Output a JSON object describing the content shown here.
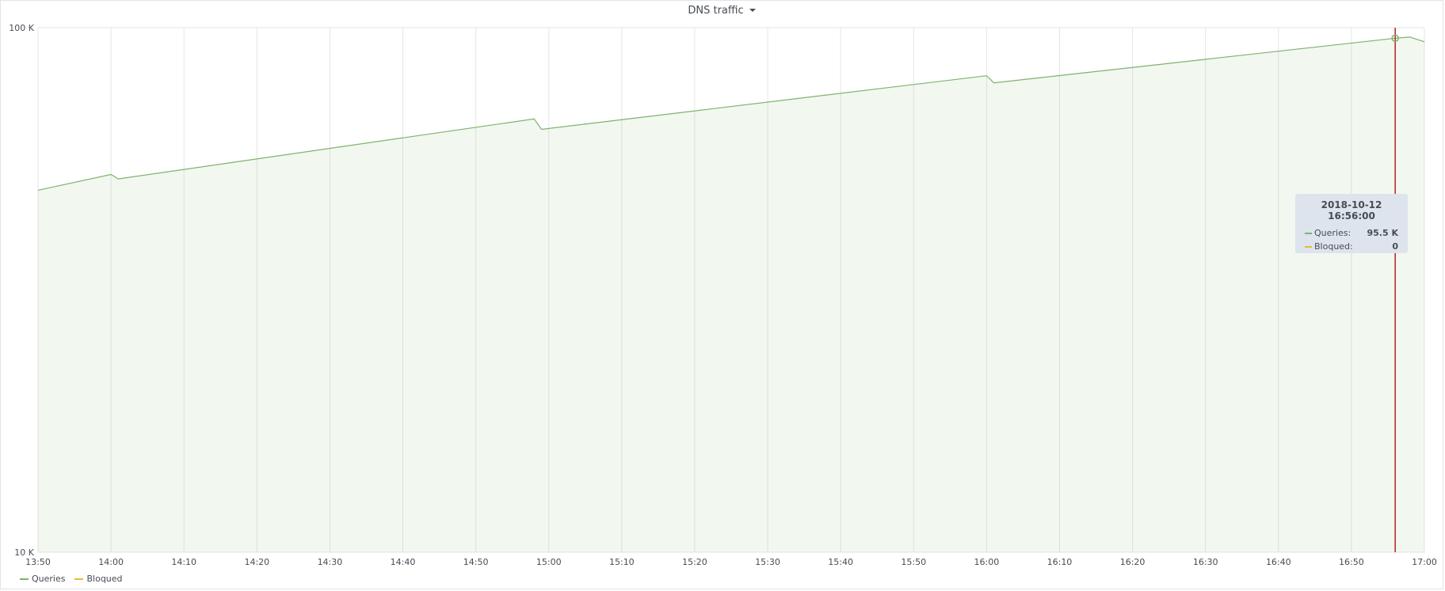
{
  "panel": {
    "title": "DNS traffic"
  },
  "chart_data": {
    "type": "area",
    "title": "DNS traffic",
    "y_scale": "log",
    "ylim": [
      10000,
      100000
    ],
    "y_ticks": [
      {
        "value": 10000,
        "label": "10 K"
      },
      {
        "value": 100000,
        "label": "100 K"
      }
    ],
    "x_tick_labels": [
      "13:50",
      "14:00",
      "14:10",
      "14:20",
      "14:30",
      "14:40",
      "14:50",
      "15:00",
      "15:10",
      "15:20",
      "15:30",
      "15:40",
      "15:50",
      "16:00",
      "16:10",
      "16:20",
      "16:30",
      "16:40",
      "16:50",
      "17:00"
    ],
    "grid": true,
    "legend_position": "bottom-left",
    "series": [
      {
        "name": "Queries",
        "color": "#7eb26d",
        "x": [
          "13:50",
          "14:00",
          "14:01",
          "14:58",
          "14:59",
          "16:00",
          "16:01",
          "16:56",
          "16:58",
          "17:00"
        ],
        "y": [
          49000,
          52500,
          51500,
          67000,
          64000,
          81000,
          78500,
          95500,
          96000,
          94000
        ]
      },
      {
        "name": "Bloqued",
        "color": "#eab839",
        "x": [
          "13:50",
          "17:00"
        ],
        "y": [
          0,
          0
        ]
      }
    ],
    "crosshair_time": "16:56"
  },
  "tooltip": {
    "time": "2018-10-12 16:56:00",
    "rows": [
      {
        "label": "Queries:",
        "value": "95.5 K",
        "color": "#7eb26d"
      },
      {
        "label": "Bloqued:",
        "value": "0",
        "color": "#eab839"
      }
    ]
  }
}
